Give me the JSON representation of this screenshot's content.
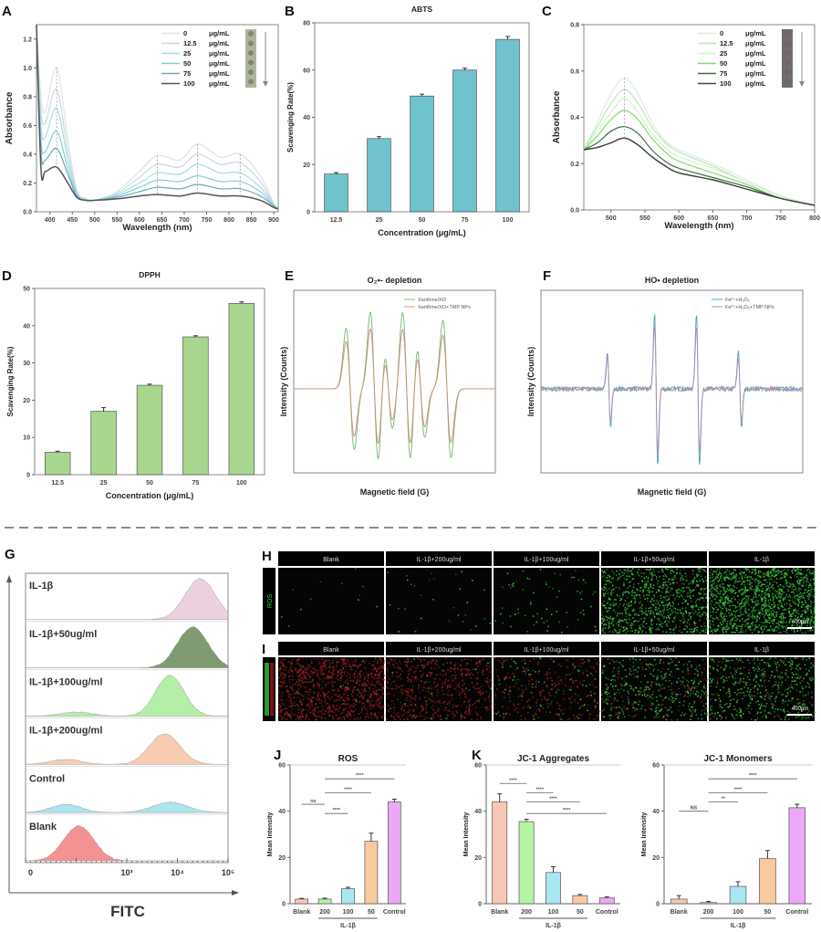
{
  "figure": {
    "panel_letters": [
      "A",
      "B",
      "C",
      "D",
      "E",
      "F",
      "G",
      "H",
      "I",
      "J",
      "K"
    ]
  },
  "chart_data": [
    {
      "panel": "A",
      "type": "line",
      "xlabel": "Wavelength (nm)",
      "ylabel": "Absorbance",
      "xlim": [
        370,
        910
      ],
      "ylim": [
        0,
        1.3
      ],
      "xticks": [
        "400",
        "450",
        "500",
        "550",
        "600",
        "650",
        "700",
        "750",
        "800",
        "850",
        "900"
      ],
      "yticks": [
        "0.0",
        "0.2",
        "0.4",
        "0.6",
        "0.8",
        "1.0",
        "1.2"
      ],
      "markers": [
        415,
        640,
        730,
        825
      ],
      "legend": "top-right",
      "vial_color": "#9aa98a",
      "x": [
        370,
        380,
        390,
        415,
        440,
        460,
        480,
        500,
        550,
        600,
        640,
        690,
        730,
        780,
        825,
        870,
        900,
        910
      ],
      "series": [
        {
          "name": "0 μg/mL",
          "color": "#e2e2e2",
          "values": [
            1.3,
            0.8,
            0.7,
            1.0,
            0.5,
            0.15,
            0.09,
            0.08,
            0.14,
            0.28,
            0.39,
            0.36,
            0.47,
            0.38,
            0.4,
            0.25,
            0.06,
            0.02
          ]
        },
        {
          "name": "12.5 μg/mL",
          "color": "#c9d9dc",
          "values": [
            1.3,
            0.7,
            0.62,
            0.85,
            0.42,
            0.14,
            0.09,
            0.08,
            0.13,
            0.24,
            0.33,
            0.31,
            0.4,
            0.33,
            0.34,
            0.21,
            0.05,
            0.02
          ]
        },
        {
          "name": "25 μg/mL",
          "color": "#a6dbe3",
          "values": [
            1.3,
            0.6,
            0.52,
            0.72,
            0.36,
            0.13,
            0.09,
            0.08,
            0.12,
            0.2,
            0.27,
            0.26,
            0.33,
            0.27,
            0.27,
            0.17,
            0.05,
            0.02
          ]
        },
        {
          "name": "50 μg/mL",
          "color": "#86cdda",
          "values": [
            1.3,
            0.5,
            0.42,
            0.56,
            0.3,
            0.12,
            0.08,
            0.08,
            0.11,
            0.17,
            0.22,
            0.21,
            0.25,
            0.21,
            0.21,
            0.14,
            0.04,
            0.02
          ]
        },
        {
          "name": "75 μg/mL",
          "color": "#6aa9b8",
          "values": [
            1.3,
            0.42,
            0.36,
            0.44,
            0.26,
            0.11,
            0.08,
            0.08,
            0.1,
            0.14,
            0.17,
            0.16,
            0.19,
            0.16,
            0.16,
            0.11,
            0.04,
            0.02
          ]
        },
        {
          "name": "100 μg/mL",
          "color": "#555555",
          "values": [
            1.3,
            0.3,
            0.28,
            0.31,
            0.2,
            0.1,
            0.08,
            0.08,
            0.09,
            0.11,
            0.12,
            0.11,
            0.13,
            0.11,
            0.11,
            0.08,
            0.03,
            0.02
          ]
        }
      ]
    },
    {
      "panel": "B",
      "type": "bar",
      "title": "ABTS",
      "xlabel": "Concentration (μg/mL)",
      "ylabel": "Scavenging Rate(%)",
      "ylim": [
        0,
        80
      ],
      "yticks": [
        "0",
        "20",
        "40",
        "60",
        "80"
      ],
      "categories": [
        "12.5",
        "25",
        "50",
        "75",
        "100"
      ],
      "values": [
        16,
        31,
        49,
        60,
        73
      ],
      "errors": [
        0.6,
        0.8,
        0.8,
        0.8,
        1.2
      ],
      "colors": [
        "#6fc3cc",
        "#6fc3cc",
        "#6fc3cc",
        "#6fc3cc",
        "#6fc3cc"
      ]
    },
    {
      "panel": "C",
      "type": "line",
      "xlabel": "Wavelength (nm)",
      "ylabel": "Absorbance",
      "xlim": [
        460,
        800
      ],
      "ylim": [
        0,
        0.8
      ],
      "xticks": [
        "500",
        "550",
        "600",
        "650",
        "700",
        "750",
        "800"
      ],
      "yticks": [
        "0.0",
        "0.2",
        "0.4",
        "0.6",
        "0.8"
      ],
      "markers": [
        520
      ],
      "legend": "top-right",
      "vial_color": "#555555",
      "x": [
        460,
        480,
        500,
        520,
        540,
        560,
        580,
        600,
        650,
        700,
        750,
        800
      ],
      "series": [
        {
          "name": "0 μg/mL",
          "color": "#e6e6e6",
          "values": [
            0.26,
            0.38,
            0.5,
            0.57,
            0.5,
            0.38,
            0.3,
            0.26,
            0.2,
            0.13,
            0.06,
            0.02
          ]
        },
        {
          "name": "12.5 μg/mL",
          "color": "#b4eab4",
          "values": [
            0.26,
            0.36,
            0.46,
            0.52,
            0.46,
            0.36,
            0.29,
            0.25,
            0.19,
            0.12,
            0.06,
            0.02
          ]
        },
        {
          "name": "25 μg/mL",
          "color": "#d6efcf",
          "values": [
            0.26,
            0.34,
            0.42,
            0.48,
            0.42,
            0.33,
            0.27,
            0.23,
            0.18,
            0.12,
            0.06,
            0.02
          ]
        },
        {
          "name": "50 μg/mL",
          "color": "#7fdc6a",
          "values": [
            0.26,
            0.32,
            0.39,
            0.43,
            0.39,
            0.31,
            0.25,
            0.21,
            0.16,
            0.11,
            0.05,
            0.02
          ]
        },
        {
          "name": "75 μg/mL",
          "color": "#3f6e3f",
          "values": [
            0.26,
            0.29,
            0.34,
            0.36,
            0.33,
            0.26,
            0.21,
            0.18,
            0.14,
            0.1,
            0.05,
            0.02
          ]
        },
        {
          "name": "100 μg/mL",
          "color": "#444444",
          "values": [
            0.26,
            0.27,
            0.29,
            0.31,
            0.28,
            0.23,
            0.19,
            0.16,
            0.13,
            0.09,
            0.05,
            0.02
          ]
        }
      ]
    },
    {
      "panel": "D",
      "type": "bar",
      "title": "DPPH",
      "xlabel": "Concentration (μg/mL)",
      "ylabel": "Scavenging Rate(%)",
      "ylim": [
        0,
        50
      ],
      "yticks": [
        "0",
        "10",
        "20",
        "30",
        "40",
        "50"
      ],
      "categories": [
        "12.5",
        "25",
        "50",
        "75",
        "100"
      ],
      "values": [
        6,
        17,
        24,
        37,
        46
      ],
      "errors": [
        0.3,
        1.0,
        0.3,
        0.3,
        0.4
      ],
      "colors": [
        "#a8d68f",
        "#a8d68f",
        "#a8d68f",
        "#a8d68f",
        "#a8d68f"
      ]
    },
    {
      "panel": "E",
      "type": "line",
      "subtype": "epr-derivative",
      "title": "O₂•- depletion",
      "xlabel": "Magnetic field (G)",
      "ylabel": "Intensity (Counts)",
      "legend": "top-right",
      "lines": [
        {
          "center": 0.28,
          "amplitude": 0.75
        },
        {
          "center": 0.4,
          "amplitude": 0.95
        },
        {
          "center": 0.47,
          "amplitude": 0.5
        },
        {
          "center": 0.56,
          "amplitude": 0.95
        },
        {
          "center": 0.63,
          "amplitude": 0.6
        },
        {
          "center": 0.76,
          "amplitude": 0.85
        }
      ],
      "series": [
        {
          "name": "Xanthine/XO",
          "color": "#8fd98a",
          "scale": 1.0
        },
        {
          "name": "Xanthine/XO+TMP NPs",
          "color": "#e8a888",
          "scale": 0.78
        }
      ]
    },
    {
      "panel": "F",
      "type": "line",
      "subtype": "epr-derivative",
      "title": "HO• depletion",
      "xlabel": "Magnetic field (G)",
      "ylabel": "Intensity (Counts)",
      "legend": "top-right",
      "lines": [
        {
          "center": 0.26,
          "amplitude": 1
        },
        {
          "center": 0.44,
          "amplitude": 2
        },
        {
          "center": 0.6,
          "amplitude": 2
        },
        {
          "center": 0.76,
          "amplitude": 1
        }
      ],
      "series": [
        {
          "name": "Fe²⁺+H₂O₂",
          "color": "#5bc0d6",
          "scale": 1.0
        },
        {
          "name": "Fe²⁺+H₂O₂+TMP NPs",
          "color": "#c9a0c9",
          "scale": 0.85
        }
      ]
    },
    {
      "panel": "G",
      "type": "area",
      "subtype": "flow-histogram",
      "xlabel": "FITC",
      "xticks": [
        "0",
        "10³",
        "10⁴",
        "10⁵"
      ],
      "rows": [
        {
          "label": "IL-1β",
          "color": "#e8c8d8",
          "peaks": [
            {
              "center": 4.45,
              "sd": 0.3,
              "height": 1
            }
          ]
        },
        {
          "label": "IL-1β+50ug/ml",
          "color": "#6a8a5a",
          "peaks": [
            {
              "center": 4.3,
              "sd": 0.3,
              "height": 1
            }
          ]
        },
        {
          "label": "IL-1β+100ug/ml",
          "color": "#a8ec98",
          "peaks": [
            {
              "center": 3.85,
              "sd": 0.28,
              "height": 1
            },
            {
              "center": 2.0,
              "sd": 0.3,
              "height": 0.1
            }
          ]
        },
        {
          "label": "IL-1β+200ug/ml",
          "color": "#f6c4a4",
          "peaks": [
            {
              "center": 3.75,
              "sd": 0.3,
              "height": 0.75
            },
            {
              "center": 1.8,
              "sd": 0.3,
              "height": 0.12
            }
          ]
        },
        {
          "label": "Control",
          "color": "#9edfea",
          "peaks": [
            {
              "center": 3.85,
              "sd": 0.35,
              "height": 0.25
            },
            {
              "center": 1.8,
              "sd": 0.3,
              "height": 0.2
            }
          ]
        },
        {
          "label": "Blank",
          "color": "#f08080",
          "peaks": [
            {
              "center": 2.05,
              "sd": 0.3,
              "height": 0.85
            }
          ]
        }
      ]
    },
    {
      "panel": "J",
      "type": "bar",
      "title": "ROS",
      "ylabel": "Mean Intensity",
      "ylim": [
        0,
        60
      ],
      "yticks": [
        "0",
        "20",
        "40",
        "60"
      ],
      "categories": [
        "Blank",
        "200",
        "100",
        "50",
        "Control"
      ],
      "values": [
        2,
        2,
        6.5,
        27,
        44
      ],
      "errors": [
        0.3,
        0.4,
        0.6,
        3.5,
        1.2
      ],
      "colors": [
        "#f8c6b4",
        "#b6f2a4",
        "#a9e6f0",
        "#f9c9a0",
        "#eaa8f5"
      ],
      "group": {
        "label": "IL-1β",
        "from": 1,
        "to": 3
      },
      "significance": [
        {
          "from": 0,
          "to": 1,
          "y": 43,
          "label": "ns"
        },
        {
          "from": 1,
          "to": 2,
          "y": 39,
          "label": "****"
        },
        {
          "from": 1,
          "to": 3,
          "y": 48,
          "label": "****"
        },
        {
          "from": 1,
          "to": 4,
          "y": 54,
          "label": "****"
        }
      ]
    },
    {
      "panel": "K",
      "type": "bar",
      "title": "JC-1 Aggregates",
      "ylabel": "Mean Intensity",
      "ylim": [
        0,
        60
      ],
      "yticks": [
        "0",
        "20",
        "40",
        "60"
      ],
      "categories": [
        "Blank",
        "200",
        "100",
        "50",
        "Control"
      ],
      "values": [
        44,
        35.5,
        13.5,
        3.5,
        2.5
      ],
      "errors": [
        3.5,
        1.0,
        2.5,
        0.5,
        0.5
      ],
      "colors": [
        "#f8c6b4",
        "#b6f2a4",
        "#a9e6f0",
        "#f9c9a0",
        "#eaa8f5"
      ],
      "group": {
        "label": "IL-1β",
        "from": 1,
        "to": 3
      },
      "significance": [
        {
          "from": 0,
          "to": 1,
          "y": 52,
          "label": "****"
        },
        {
          "from": 1,
          "to": 2,
          "y": 48,
          "label": "****"
        },
        {
          "from": 1,
          "to": 3,
          "y": 44,
          "label": "****"
        },
        {
          "from": 1,
          "to": 4,
          "y": 39,
          "label": "****"
        }
      ]
    },
    {
      "panel": "K",
      "type": "bar",
      "title": "JC-1 Monomers",
      "ylabel": "Mean Intensity",
      "ylim": [
        0,
        60
      ],
      "yticks": [
        "0",
        "20",
        "40",
        "60"
      ],
      "categories": [
        "Blank",
        "200",
        "100",
        "50",
        "Control"
      ],
      "values": [
        2,
        0.5,
        7.5,
        19.5,
        41.5
      ],
      "errors": [
        1.5,
        0.5,
        2.0,
        3.5,
        1.5
      ],
      "colors": [
        "#f8c6b4",
        "#b6f2a4",
        "#a9e6f0",
        "#f9c9a0",
        "#eaa8f5"
      ],
      "group": {
        "label": "IL-1β",
        "from": 1,
        "to": 3
      },
      "significance": [
        {
          "from": 0,
          "to": 1,
          "y": 40,
          "label": "NS"
        },
        {
          "from": 1,
          "to": 2,
          "y": 44,
          "label": "**"
        },
        {
          "from": 1,
          "to": 3,
          "y": 48,
          "label": "****"
        },
        {
          "from": 1,
          "to": 4,
          "y": 54,
          "label": "****"
        }
      ]
    }
  ],
  "microscopy": {
    "columns": [
      "Blank",
      "IL-1β+200ug/ml",
      "IL-1β+100ug/ml",
      "IL-1β+50ug/ml",
      "IL-1β"
    ],
    "rows": [
      {
        "panel": "H",
        "side_label": "ROS",
        "side_color": "#3ccf3c",
        "scale_bar": "400μm"
      },
      {
        "panel": "I",
        "side_label": "",
        "side_color": "#2a9a2a",
        "scale_bar": "400μm"
      }
    ]
  }
}
